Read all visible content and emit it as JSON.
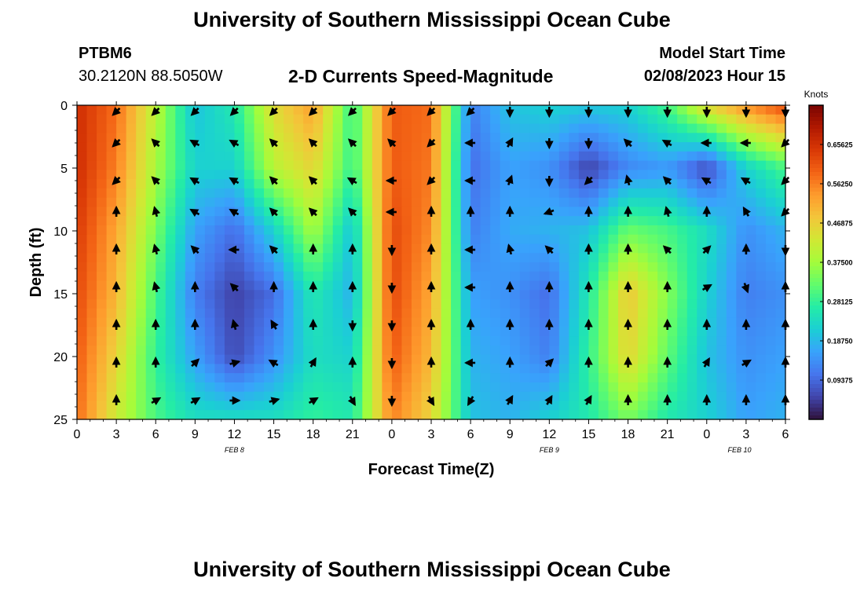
{
  "header": {
    "title": "University of Southern Mississippi Ocean Cube",
    "station": "PTBM6",
    "coordinates": "30.2120N  88.5050W",
    "subtitle": "2-D Currents Speed-Magnitude",
    "model_start_label": "Model Start Time",
    "model_start_value": "02/08/2023 Hour 15"
  },
  "footer": {
    "title": "University of Southern Mississippi Ocean Cube"
  },
  "chart_data": {
    "type": "heatmap",
    "title": "2-D Currents Speed-Magnitude",
    "xlabel": "Forecast Time(Z)",
    "ylabel": "Depth (ft)",
    "x_tick_labels": [
      "0",
      "3",
      "6",
      "9",
      "12",
      "15",
      "18",
      "21",
      "0",
      "3",
      "6",
      "9",
      "12",
      "15",
      "18",
      "21",
      "0",
      "3",
      "6"
    ],
    "x_hours": [
      0,
      3,
      6,
      9,
      12,
      15,
      18,
      21,
      24,
      27,
      30,
      33,
      36,
      39,
      42,
      45,
      48,
      51,
      54
    ],
    "date_labels": [
      {
        "label": "FEB 8",
        "hour": 12
      },
      {
        "label": "FEB 9",
        "hour": 36
      },
      {
        "label": "FEB 10",
        "hour": 50.5
      }
    ],
    "y_ticks": [
      0,
      5,
      10,
      15,
      20,
      25
    ],
    "ylim": [
      25,
      0
    ],
    "xlim": [
      0,
      54
    ],
    "colorbar": {
      "label": "Knots",
      "ticks": [
        "0.65625",
        "0.56250",
        "0.46875",
        "0.37500",
        "0.28125",
        "0.18750",
        "0.09375"
      ],
      "tick_values": [
        0.65625,
        0.5625,
        0.46875,
        0.375,
        0.28125,
        0.1875,
        0.09375
      ],
      "range": [
        0,
        0.75
      ]
    },
    "colormap": [
      "#30123b",
      "#4145ab",
      "#4675ed",
      "#39a2fc",
      "#1bcfd4",
      "#24eca6",
      "#61fc6c",
      "#a4fc3b",
      "#d1e834",
      "#f3c63a",
      "#fe9b2d",
      "#f36315",
      "#d93806",
      "#b11901",
      "#7a0402"
    ],
    "speed_grid": {
      "depths_ft": [
        0,
        5,
        10,
        15,
        20,
        25
      ],
      "hours": [
        0,
        3,
        6,
        9,
        12,
        15,
        18,
        21,
        24,
        27,
        30,
        33,
        36,
        39,
        42,
        45,
        48,
        51,
        54
      ],
      "values": [
        [
          0.66,
          0.58,
          0.4,
          0.2,
          0.26,
          0.45,
          0.53,
          0.28,
          0.6,
          0.58,
          0.12,
          0.2,
          0.22,
          0.21,
          0.22,
          0.3,
          0.46,
          0.55,
          0.62
        ],
        [
          0.66,
          0.56,
          0.38,
          0.22,
          0.22,
          0.4,
          0.46,
          0.28,
          0.6,
          0.57,
          0.1,
          0.16,
          0.14,
          0.05,
          0.13,
          0.15,
          0.06,
          0.22,
          0.3
        ],
        [
          0.64,
          0.52,
          0.34,
          0.16,
          0.1,
          0.22,
          0.38,
          0.2,
          0.62,
          0.55,
          0.12,
          0.17,
          0.18,
          0.2,
          0.33,
          0.3,
          0.24,
          0.14,
          0.18
        ],
        [
          0.62,
          0.5,
          0.3,
          0.12,
          0.05,
          0.1,
          0.26,
          0.18,
          0.62,
          0.52,
          0.16,
          0.14,
          0.1,
          0.26,
          0.48,
          0.35,
          0.22,
          0.12,
          0.14
        ],
        [
          0.6,
          0.46,
          0.28,
          0.16,
          0.06,
          0.14,
          0.24,
          0.22,
          0.6,
          0.5,
          0.18,
          0.16,
          0.12,
          0.28,
          0.46,
          0.32,
          0.2,
          0.14,
          0.16
        ],
        [
          0.58,
          0.42,
          0.3,
          0.24,
          0.24,
          0.24,
          0.28,
          0.26,
          0.56,
          0.46,
          0.2,
          0.18,
          0.22,
          0.26,
          0.34,
          0.26,
          0.22,
          0.16,
          0.18
        ]
      ]
    },
    "arrow_grid": {
      "hours": [
        3,
        6,
        9,
        12,
        15,
        18,
        21,
        24,
        27,
        30,
        33,
        36,
        39,
        42,
        45,
        48,
        51,
        54
      ],
      "depths_ft": [
        0.5,
        3,
        6,
        8.5,
        11.5,
        14.5,
        17.5,
        20.5,
        23.5
      ],
      "direction_deg": [
        [
          225,
          225,
          225,
          225,
          225,
          225,
          225,
          225,
          225,
          225,
          180,
          180,
          180,
          180,
          180,
          180,
          180,
          180
        ],
        [
          225,
          315,
          300,
          300,
          315,
          315,
          315,
          315,
          225,
          270,
          30,
          180,
          180,
          315,
          300,
          270,
          270,
          225
        ],
        [
          225,
          315,
          300,
          300,
          315,
          315,
          300,
          270,
          225,
          270,
          20,
          180,
          225,
          345,
          315,
          300,
          300,
          225
        ],
        [
          0,
          345,
          300,
          300,
          315,
          315,
          315,
          270,
          0,
          0,
          0,
          250,
          0,
          0,
          345,
          0,
          330,
          225
        ],
        [
          0,
          345,
          315,
          270,
          315,
          0,
          0,
          180,
          0,
          270,
          345,
          315,
          0,
          0,
          315,
          45,
          0,
          180
        ],
        [
          0,
          345,
          0,
          315,
          0,
          0,
          0,
          180,
          0,
          270,
          0,
          0,
          0,
          0,
          0,
          60,
          160,
          0
        ],
        [
          0,
          0,
          0,
          345,
          330,
          0,
          180,
          180,
          0,
          0,
          0,
          0,
          0,
          0,
          0,
          0,
          0,
          0
        ],
        [
          0,
          0,
          45,
          75,
          300,
          30,
          0,
          180,
          0,
          270,
          0,
          45,
          0,
          0,
          0,
          30,
          60,
          0
        ],
        [
          0,
          60,
          60,
          90,
          75,
          60,
          150,
          180,
          150,
          210,
          30,
          30,
          30,
          0,
          0,
          0,
          0,
          0
        ]
      ]
    }
  }
}
